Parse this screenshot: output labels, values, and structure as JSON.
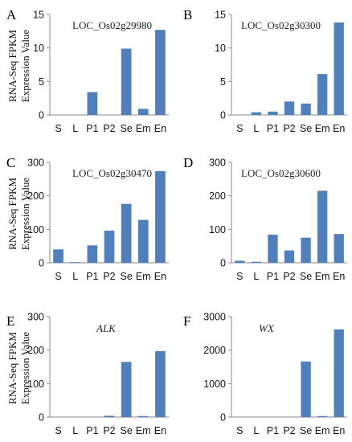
{
  "ylabel_lines": [
    "RNA-Seq FPKM",
    "Expression Value"
  ],
  "chart_data": [
    {
      "type": "bar",
      "panel": "A",
      "title": "LOC_Os02g29980",
      "title_italic": false,
      "categories": [
        "S",
        "L",
        "P1",
        "P2",
        "Se",
        "Em",
        "En"
      ],
      "values": [
        0,
        0,
        3.4,
        0,
        9.9,
        0.9,
        12.7
      ],
      "ylim": [
        0,
        15
      ],
      "yticks": [
        0,
        5,
        10,
        15
      ],
      "ylabel": "RNA-Seq FPKM Expression Value",
      "bar_color": "#4f7fbd",
      "grid": false
    },
    {
      "type": "bar",
      "panel": "B",
      "title": "LOC_Os02g30300",
      "title_italic": false,
      "categories": [
        "S",
        "L",
        "P1",
        "P2",
        "Se",
        "Em",
        "En"
      ],
      "values": [
        0,
        0.4,
        0.5,
        2.0,
        1.7,
        6.1,
        13.8
      ],
      "ylim": [
        0,
        15
      ],
      "yticks": [
        0,
        5,
        10,
        15
      ],
      "ylabel": "",
      "bar_color": "#4f7fbd",
      "grid": false
    },
    {
      "type": "bar",
      "panel": "C",
      "title": "LOC_Os02g30470",
      "title_italic": false,
      "categories": [
        "S",
        "L",
        "P1",
        "P2",
        "Se",
        "Em",
        "En"
      ],
      "values": [
        40,
        2,
        52,
        96,
        176,
        128,
        274
      ],
      "ylim": [
        0,
        300
      ],
      "yticks": [
        0,
        100,
        200,
        300
      ],
      "ylabel": "RNA-Seq FPKM Expression Value",
      "bar_color": "#4f7fbd",
      "grid": false
    },
    {
      "type": "bar",
      "panel": "D",
      "title": "LOC_Os02g30600",
      "title_italic": false,
      "categories": [
        "S",
        "L",
        "P1",
        "P2",
        "Se",
        "Em",
        "En"
      ],
      "values": [
        6,
        3,
        84,
        37,
        75,
        215,
        86
      ],
      "ylim": [
        0,
        300
      ],
      "yticks": [
        0,
        100,
        200,
        300
      ],
      "ylabel": "",
      "bar_color": "#4f7fbd",
      "grid": false
    },
    {
      "type": "bar",
      "panel": "E",
      "title": "ALK",
      "title_italic": true,
      "categories": [
        "S",
        "L",
        "P1",
        "P2",
        "Se",
        "Em",
        "En"
      ],
      "values": [
        0,
        0,
        0,
        4,
        165,
        3,
        197
      ],
      "ylim": [
        0,
        300
      ],
      "yticks": [
        0,
        100,
        200,
        300
      ],
      "ylabel": "RNA-Seq FPKM Expression Value",
      "bar_color": "#4f7fbd",
      "grid": false
    },
    {
      "type": "bar",
      "panel": "F",
      "title": "WX",
      "title_italic": true,
      "categories": [
        "S",
        "L",
        "P1",
        "P2",
        "Se",
        "Em",
        "En"
      ],
      "values": [
        0,
        0,
        0,
        0,
        1660,
        30,
        2620
      ],
      "ylim": [
        0,
        3000
      ],
      "yticks": [
        0,
        1000,
        2000,
        3000
      ],
      "ylabel": "",
      "bar_color": "#4f7fbd",
      "grid": false
    }
  ]
}
